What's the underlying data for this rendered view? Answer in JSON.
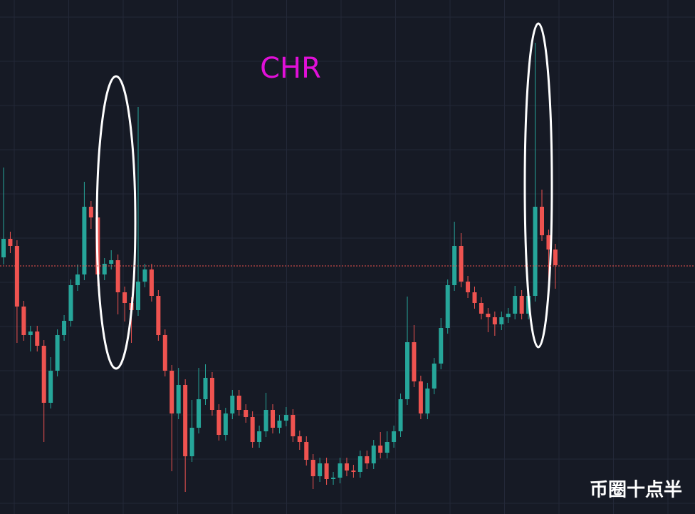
{
  "chart_data": {
    "type": "candlestick",
    "title": "CHR",
    "watermark": "币圈十点半",
    "up_color": "#26a69a",
    "down_color": "#ef5350",
    "title_color": "#e010d8",
    "ylim": [
      0,
      721
    ],
    "last_price_line": 348,
    "grid": true,
    "open": [
      360,
      386,
      376,
      291,
      251,
      256,
      236,
      156,
      201,
      251,
      271,
      321,
      336,
      431,
      416,
      336,
      351,
      356,
      311,
      296,
      286,
      326,
      343,
      306,
      251,
      201,
      141,
      181,
      81,
      121,
      161,
      191,
      146,
      111,
      141,
      166,
      146,
      136,
      101,
      116,
      146,
      121,
      131,
      139,
      109,
      101,
      76,
      53,
      71,
      49,
      51,
      71,
      61,
      59,
      81,
      71,
      96,
      86,
      101,
      116,
      161,
      241,
      186,
      141,
      176,
      211,
      261,
      321,
      376,
      326,
      311,
      296,
      281,
      276,
      266,
      276,
      281,
      306,
      281,
      306,
      431,
      391,
      371
    ],
    "high": [
      486,
      396,
      384,
      299,
      264,
      264,
      244,
      220,
      259,
      279,
      329,
      350,
      466,
      439,
      424,
      359,
      370,
      364,
      319,
      304,
      571,
      351,
      351,
      314,
      259,
      209,
      205,
      189,
      160,
      205,
      210,
      199,
      154,
      149,
      174,
      174,
      154,
      144,
      124,
      170,
      154,
      139,
      150,
      147,
      117,
      109,
      84,
      79,
      79,
      59,
      79,
      79,
      69,
      89,
      89,
      104,
      115,
      116,
      124,
      169,
      305,
      265,
      194,
      184,
      219,
      275,
      329,
      410,
      394,
      334,
      319,
      304,
      289,
      284,
      284,
      289,
      320,
      314,
      314,
      661,
      455,
      399,
      379
    ],
    "low": [
      350,
      366,
      240,
      243,
      228,
      228,
      101,
      148,
      193,
      243,
      263,
      313,
      328,
      400,
      320,
      328,
      343,
      280,
      270,
      240,
      278,
      318,
      298,
      243,
      193,
      60,
      133,
      31,
      73,
      113,
      153,
      138,
      103,
      103,
      133,
      138,
      128,
      93,
      93,
      108,
      113,
      113,
      123,
      101,
      90,
      68,
      35,
      45,
      41,
      41,
      43,
      53,
      51,
      51,
      63,
      63,
      78,
      78,
      93,
      108,
      153,
      178,
      133,
      133,
      168,
      203,
      253,
      313,
      318,
      303,
      288,
      273,
      255,
      250,
      258,
      268,
      273,
      273,
      273,
      298,
      383,
      305,
      316
    ],
    "close": [
      386,
      376,
      291,
      251,
      256,
      236,
      156,
      201,
      251,
      271,
      321,
      336,
      431,
      416,
      336,
      351,
      356,
      311,
      296,
      286,
      326,
      343,
      306,
      251,
      201,
      141,
      181,
      81,
      121,
      161,
      191,
      146,
      111,
      141,
      166,
      146,
      136,
      101,
      116,
      146,
      121,
      131,
      139,
      109,
      101,
      76,
      53,
      71,
      49,
      51,
      71,
      61,
      59,
      81,
      71,
      96,
      86,
      101,
      116,
      161,
      241,
      186,
      141,
      176,
      211,
      261,
      321,
      376,
      326,
      311,
      296,
      281,
      276,
      266,
      276,
      281,
      306,
      281,
      306,
      431,
      391,
      371,
      349
    ]
  }
}
